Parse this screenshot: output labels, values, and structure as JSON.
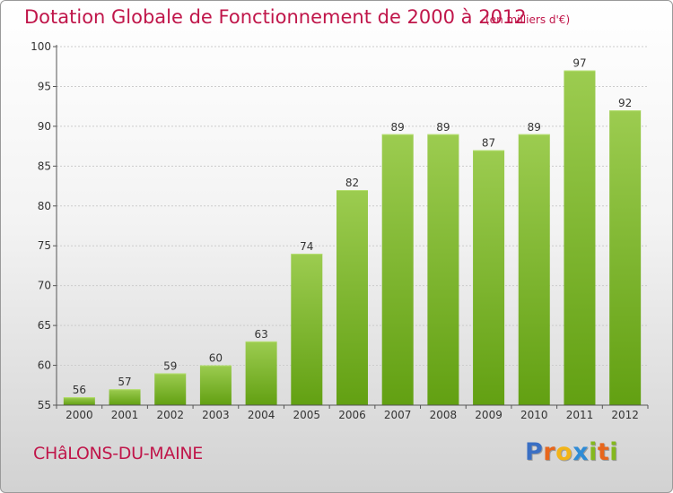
{
  "title": "Dotation Globale de Fonctionnement de 2000 à 2012",
  "unit_note": "(en milliers d'€)",
  "commune": "CHâLONS-DU-MAINE",
  "logo": {
    "letters": [
      "P",
      "r",
      "o",
      "x",
      "i",
      "t",
      "i"
    ],
    "colors": [
      "#3a6fc4",
      "#e7661c",
      "#f2b418",
      "#2e8bd6",
      "#84b81e",
      "#e7661c",
      "#84b81e"
    ]
  },
  "colors": {
    "title": "#c0164a",
    "bar_top": "#9ccc50",
    "bar_bottom": "#62a012",
    "grid": "#cccccc"
  },
  "chart_data": {
    "type": "bar",
    "title": "Dotation Globale de Fonctionnement de 2000 à 2012",
    "categories": [
      "2000",
      "2001",
      "2002",
      "2003",
      "2004",
      "2005",
      "2006",
      "2007",
      "2008",
      "2009",
      "2010",
      "2011",
      "2012"
    ],
    "values": [
      56,
      57,
      59,
      60,
      63,
      74,
      82,
      89,
      89,
      87,
      89,
      97,
      92
    ],
    "ylim": [
      55,
      100
    ],
    "yticks": [
      55,
      60,
      65,
      70,
      75,
      80,
      85,
      90,
      95,
      100
    ],
    "grid": true
  }
}
